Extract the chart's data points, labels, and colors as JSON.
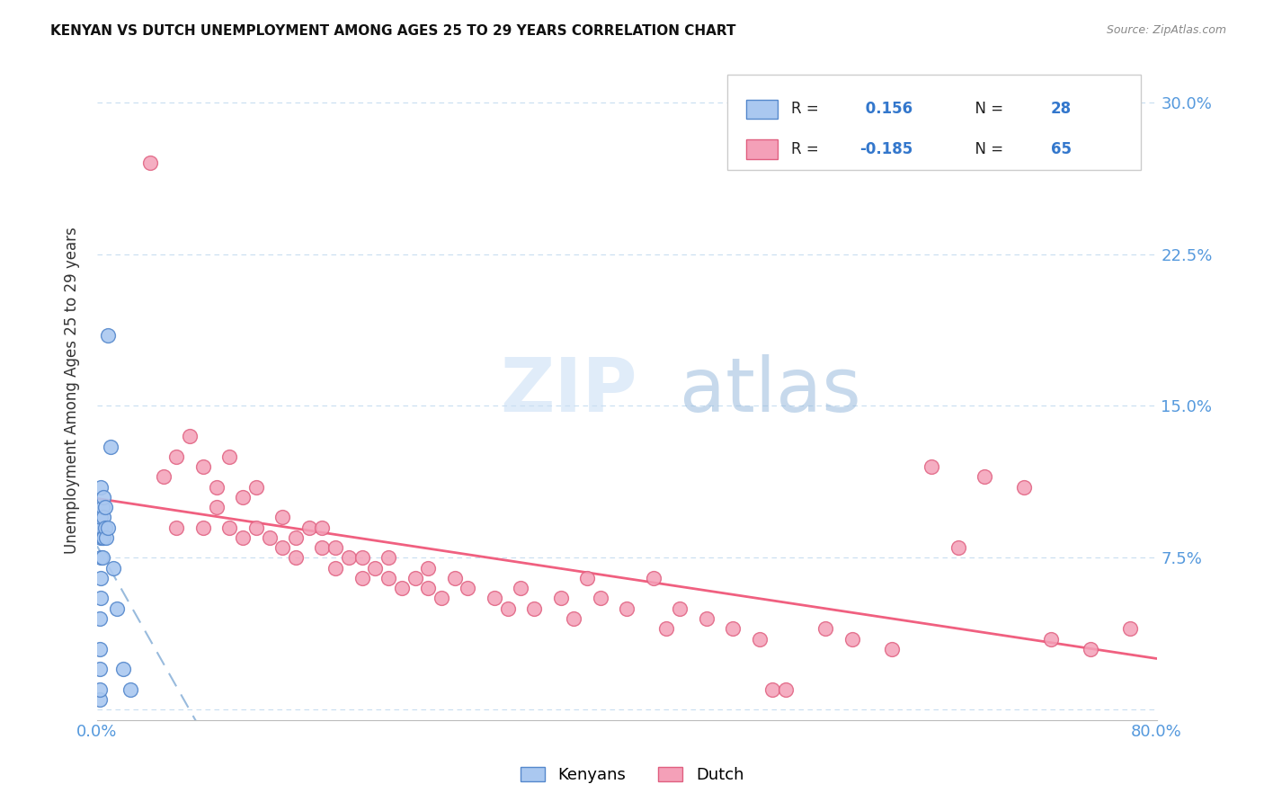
{
  "title": "KENYAN VS DUTCH UNEMPLOYMENT AMONG AGES 25 TO 29 YEARS CORRELATION CHART",
  "source": "Source: ZipAtlas.com",
  "ylabel": "Unemployment Among Ages 25 to 29 years",
  "xlim": [
    0.0,
    0.8
  ],
  "ylim": [
    -0.005,
    0.32
  ],
  "xticks": [
    0.0,
    0.1,
    0.2,
    0.3,
    0.4,
    0.5,
    0.6,
    0.7,
    0.8
  ],
  "yticks": [
    0.0,
    0.075,
    0.15,
    0.225,
    0.3
  ],
  "ytick_labels": [
    "",
    "7.5%",
    "15.0%",
    "22.5%",
    "30.0%"
  ],
  "kenyan_R": 0.156,
  "kenyan_N": 28,
  "dutch_R": -0.185,
  "dutch_N": 65,
  "kenyan_color": "#aac8f0",
  "dutch_color": "#f4a0b8",
  "kenyan_edge_color": "#5588cc",
  "dutch_edge_color": "#e06080",
  "kenyan_trend_color": "#99bbdd",
  "dutch_trend_color": "#f06080",
  "watermark_color": "#ddeeff",
  "background_color": "#ffffff",
  "grid_color": "#c8ddf0",
  "kenyan_x": [
    0.002,
    0.002,
    0.002,
    0.002,
    0.002,
    0.003,
    0.003,
    0.003,
    0.003,
    0.003,
    0.003,
    0.003,
    0.004,
    0.004,
    0.004,
    0.005,
    0.005,
    0.005,
    0.006,
    0.006,
    0.007,
    0.008,
    0.008,
    0.01,
    0.012,
    0.015,
    0.02,
    0.025
  ],
  "kenyan_y": [
    0.005,
    0.01,
    0.02,
    0.03,
    0.045,
    0.055,
    0.065,
    0.075,
    0.085,
    0.09,
    0.095,
    0.11,
    0.075,
    0.085,
    0.1,
    0.085,
    0.095,
    0.105,
    0.09,
    0.1,
    0.085,
    0.09,
    0.185,
    0.13,
    0.07,
    0.05,
    0.02,
    0.01
  ],
  "dutch_x": [
    0.04,
    0.05,
    0.06,
    0.06,
    0.07,
    0.08,
    0.08,
    0.09,
    0.09,
    0.1,
    0.1,
    0.11,
    0.11,
    0.12,
    0.12,
    0.13,
    0.14,
    0.14,
    0.15,
    0.15,
    0.16,
    0.17,
    0.17,
    0.18,
    0.18,
    0.19,
    0.2,
    0.2,
    0.21,
    0.22,
    0.22,
    0.23,
    0.24,
    0.25,
    0.25,
    0.26,
    0.27,
    0.28,
    0.3,
    0.31,
    0.32,
    0.33,
    0.35,
    0.36,
    0.37,
    0.38,
    0.4,
    0.42,
    0.43,
    0.44,
    0.46,
    0.48,
    0.5,
    0.51,
    0.52,
    0.55,
    0.57,
    0.6,
    0.63,
    0.65,
    0.67,
    0.7,
    0.72,
    0.75,
    0.78
  ],
  "dutch_y": [
    0.27,
    0.115,
    0.125,
    0.09,
    0.135,
    0.12,
    0.09,
    0.11,
    0.1,
    0.125,
    0.09,
    0.105,
    0.085,
    0.11,
    0.09,
    0.085,
    0.095,
    0.08,
    0.085,
    0.075,
    0.09,
    0.09,
    0.08,
    0.08,
    0.07,
    0.075,
    0.065,
    0.075,
    0.07,
    0.065,
    0.075,
    0.06,
    0.065,
    0.07,
    0.06,
    0.055,
    0.065,
    0.06,
    0.055,
    0.05,
    0.06,
    0.05,
    0.055,
    0.045,
    0.065,
    0.055,
    0.05,
    0.065,
    0.04,
    0.05,
    0.045,
    0.04,
    0.035,
    0.01,
    0.01,
    0.04,
    0.035,
    0.03,
    0.12,
    0.08,
    0.115,
    0.11,
    0.035,
    0.03,
    0.04
  ]
}
